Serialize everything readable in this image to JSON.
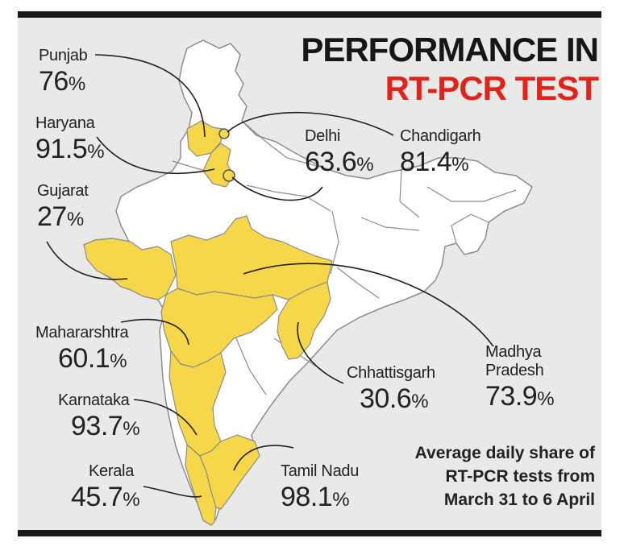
{
  "title": {
    "line1": "PERFORMANCE IN",
    "line2": "RT-PCR TEST"
  },
  "note": [
    "Average daily share of",
    "RT-PCR tests from",
    "March 31 to 6 April"
  ],
  "unit": "%",
  "states": {
    "punjab": {
      "name": "Punjab",
      "value": "76"
    },
    "haryana": {
      "name": "Haryana",
      "value": "91.5"
    },
    "gujarat": {
      "name": "Gujarat",
      "value": "27"
    },
    "delhi": {
      "name": "Delhi",
      "value": "63.6"
    },
    "chandigarh": {
      "name": "Chandigarh",
      "value": "81.4"
    },
    "maharashtra": {
      "name": "Mahararshtra",
      "value": "60.1"
    },
    "karnataka": {
      "name": "Karnataka",
      "value": "93.7"
    },
    "kerala": {
      "name": "Kerala",
      "value": "45.7"
    },
    "tamil_nadu": {
      "name": "Tamil Nadu",
      "value": "98.1"
    },
    "chhattisgarh": {
      "name": "Chhattisgarh",
      "value": "30.6"
    },
    "madhya_pradesh": {
      "name": "Madhya Pradesh",
      "name_line1": "Madhya",
      "name_line2": "Pradesh",
      "value": "73.9"
    }
  },
  "colors": {
    "highlight": "#f7d74a",
    "land": "#ffffff",
    "border": "#8c8c8c",
    "background": "#e9e9e8",
    "title_red": "#e2231a",
    "text": "#222222"
  }
}
